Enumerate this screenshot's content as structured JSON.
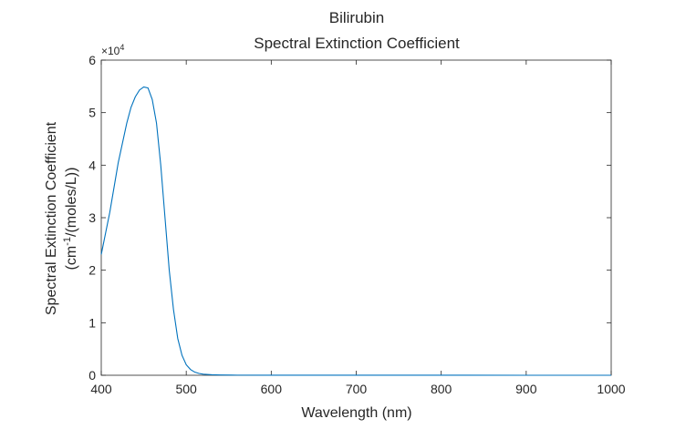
{
  "chart_data": {
    "type": "line",
    "title": "Bilirubin",
    "subtitle": "Spectral Extinction Coefficient",
    "xlabel": "Wavelength (nm)",
    "ylabel_line1": "Spectral Extinction Coefficient",
    "ylabel_line2_prefix": "(cm",
    "ylabel_line2_sup": "-1",
    "ylabel_line2_suffix": "/(moles/L))",
    "y_exponent_base": "×10",
    "y_exponent_power": "4",
    "xlim": [
      400,
      1000
    ],
    "ylim": [
      0,
      6
    ],
    "y_scale_factor": 10000,
    "xticks": [
      "400",
      "500",
      "600",
      "700",
      "800",
      "900",
      "1000"
    ],
    "yticks": [
      "0",
      "1",
      "2",
      "3",
      "4",
      "5",
      "6"
    ],
    "grid": false,
    "line_color": "#0072BD",
    "series": [
      {
        "x": [
          400,
          410,
          420,
          430,
          435,
          440,
          445,
          450,
          455,
          460,
          465,
          470,
          475,
          480,
          485,
          490,
          495,
          500,
          505,
          510,
          515,
          520,
          530,
          540,
          560,
          600,
          700,
          800,
          900,
          1000
        ],
        "y": [
          2.3,
          3.1,
          4.05,
          4.8,
          5.1,
          5.3,
          5.43,
          5.49,
          5.47,
          5.25,
          4.8,
          4.0,
          3.0,
          2.0,
          1.25,
          0.7,
          0.38,
          0.2,
          0.11,
          0.06,
          0.035,
          0.02,
          0.01,
          0.005,
          0.002,
          0.001,
          0.0005,
          0.0003,
          0.0002,
          0.0001
        ]
      }
    ]
  }
}
